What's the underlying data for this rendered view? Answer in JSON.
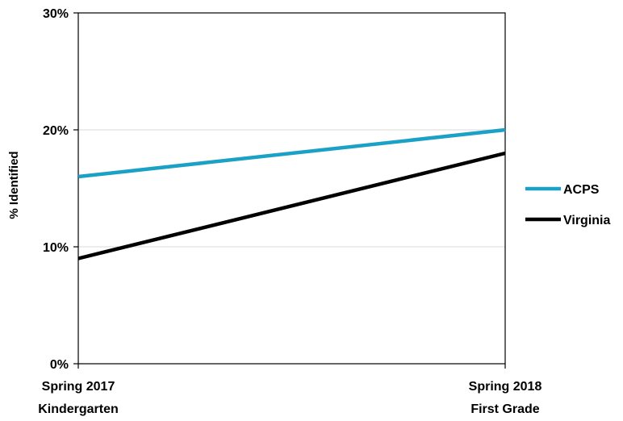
{
  "chart_data": {
    "type": "line",
    "x": [
      "Spring 2017\nKindergarten",
      "Spring 2018\nFirst Grade"
    ],
    "x_lines": [
      [
        "Spring 2017",
        "Kindergarten"
      ],
      [
        "Spring 2018",
        "First Grade"
      ]
    ],
    "ylabel": "% Identified",
    "ylim": [
      0,
      30
    ],
    "y_ticks": [
      0,
      10,
      20,
      30
    ],
    "y_tick_labels": [
      "0%",
      "10%",
      "20%",
      "30%"
    ],
    "grid": true,
    "legend_position": "right",
    "series": [
      {
        "name": "ACPS",
        "values": [
          16,
          20
        ],
        "color": "#1BA1C6"
      },
      {
        "name": "Virginia",
        "values": [
          9,
          18
        ],
        "color": "#000000"
      }
    ]
  }
}
